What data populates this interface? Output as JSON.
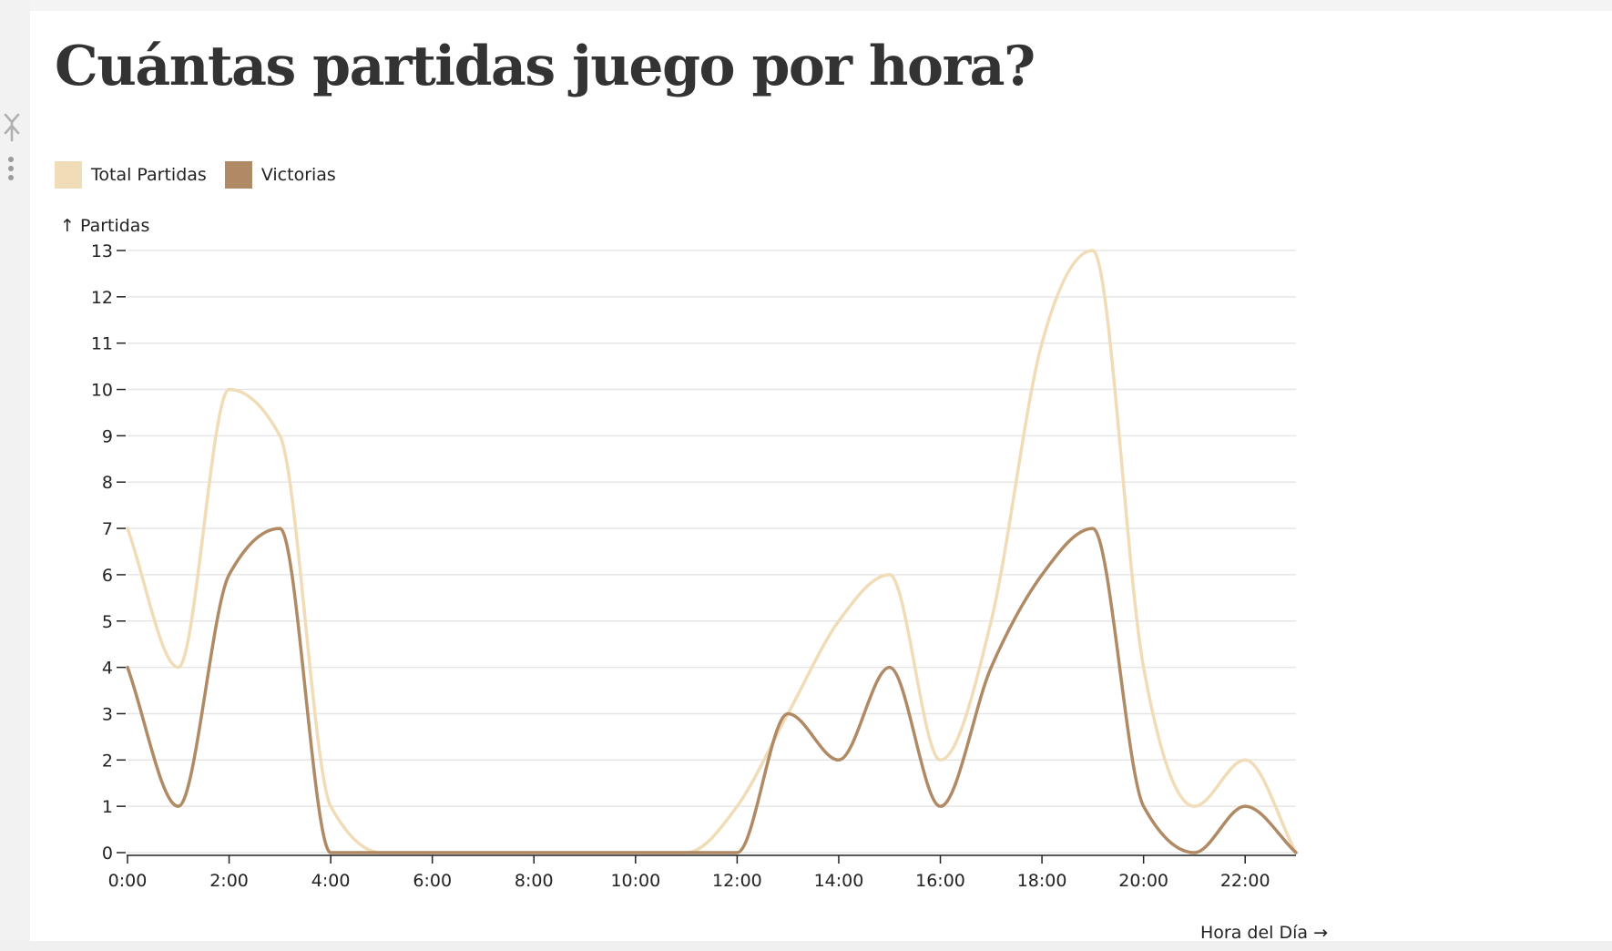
{
  "page": {
    "title": "Cuántas partidas juego por hora?"
  },
  "colors": {
    "total": "#f0dcb6",
    "victorias": "#b08a64",
    "grid": "#e6e6e6",
    "axis": "#222222",
    "title": "#333333"
  },
  "icons": {
    "pin": "pin-icon",
    "menu": "kebab-menu-icon"
  },
  "chart_data": {
    "type": "line",
    "title": "",
    "ylabel": "↑ Partidas",
    "xlabel": "Hora del Día →",
    "ylim": [
      0,
      13
    ],
    "xlim": [
      0,
      23
    ],
    "grid": true,
    "legend_position": "top-left",
    "y_ticks": [
      "0",
      "1",
      "2",
      "3",
      "4",
      "5",
      "6",
      "7",
      "8",
      "9",
      "10",
      "11",
      "12",
      "13"
    ],
    "x_ticks": [
      "0:00",
      "2:00",
      "4:00",
      "6:00",
      "8:00",
      "10:00",
      "12:00",
      "14:00",
      "16:00",
      "18:00",
      "20:00",
      "22:00"
    ],
    "x": [
      0,
      1,
      2,
      3,
      4,
      5,
      6,
      7,
      8,
      9,
      10,
      11,
      12,
      13,
      14,
      15,
      16,
      17,
      18,
      19,
      20,
      21,
      22,
      23
    ],
    "series": [
      {
        "name": "Total Partidas",
        "color": "#f0dcb6",
        "values": [
          7,
          4,
          10,
          9,
          1,
          0,
          0,
          0,
          0,
          0,
          0,
          0,
          1,
          3,
          5,
          6,
          2,
          5,
          11,
          13,
          4,
          1,
          2,
          0
        ]
      },
      {
        "name": "Victorias",
        "color": "#b08a64",
        "values": [
          4,
          1,
          6,
          7,
          0,
          0,
          0,
          0,
          0,
          0,
          0,
          0,
          0,
          3,
          2,
          4,
          1,
          4,
          6,
          7,
          1,
          0,
          1,
          0
        ]
      }
    ]
  }
}
